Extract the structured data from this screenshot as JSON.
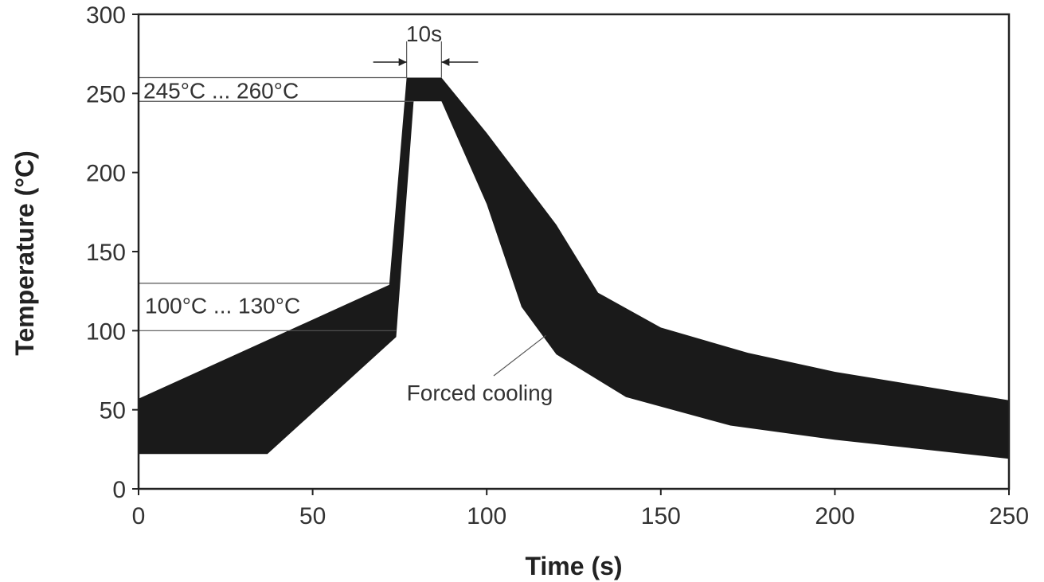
{
  "chart_data": {
    "type": "area",
    "title": "",
    "xlabel": "Time (s)",
    "ylabel": "Temperature (°C)",
    "xlim": [
      0,
      250
    ],
    "ylim": [
      0,
      300
    ],
    "xticks": [
      0,
      50,
      100,
      150,
      200,
      250
    ],
    "yticks": [
      0,
      50,
      100,
      150,
      200,
      250,
      300
    ],
    "grid": false,
    "band": {
      "upper": {
        "x": [
          0,
          72,
          77,
          87,
          100,
          120,
          132,
          150,
          175,
          200,
          225,
          250
        ],
        "y": [
          57,
          129,
          260,
          260,
          225,
          167,
          124,
          102,
          86,
          74,
          65,
          56
        ]
      },
      "lower": {
        "x": [
          0,
          37,
          74,
          79,
          87,
          100,
          110,
          120,
          140,
          170,
          200,
          225,
          250
        ],
        "y": [
          22,
          22,
          96,
          245,
          245,
          180,
          115,
          85,
          58,
          40,
          31,
          25,
          19
        ]
      }
    },
    "reference_lines": [
      {
        "y": 260,
        "x_end": 77
      },
      {
        "y": 245,
        "x_end": 79
      },
      {
        "y": 130,
        "x_end": 72
      },
      {
        "y": 100,
        "x_end": 74
      }
    ],
    "annotations": {
      "peak_range": "245°C ... 260°C",
      "preheat_range": "100°C ... 130°C",
      "dwell": "10s",
      "cooling": "Forced cooling"
    },
    "dwell_interval": [
      77,
      87
    ]
  }
}
